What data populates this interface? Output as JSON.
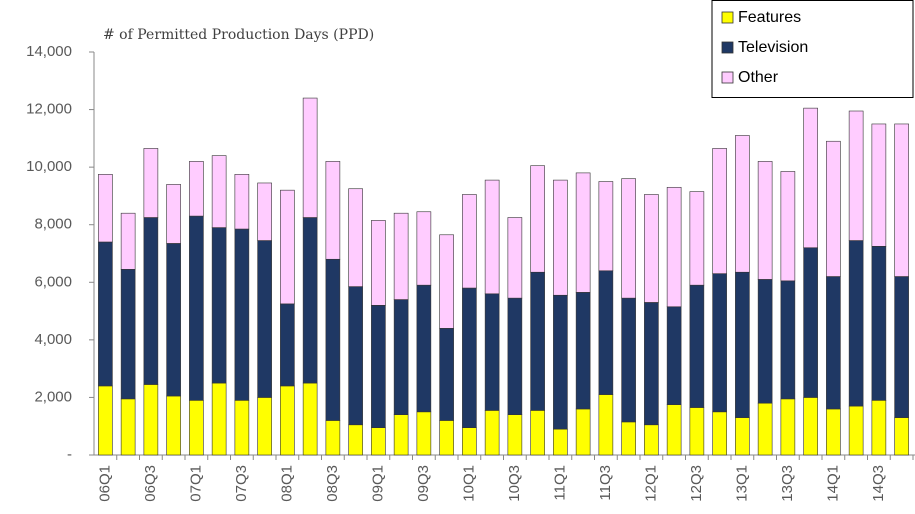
{
  "chart_data": {
    "type": "stacked_bar",
    "title": "# of Permitted Production Days (PPD)",
    "categories": [
      "06Q1",
      null,
      "06Q3",
      null,
      "07Q1",
      null,
      "07Q3",
      null,
      "08Q1",
      null,
      "08Q3",
      null,
      "09Q1",
      null,
      "09Q3",
      null,
      "10Q1",
      null,
      "10Q3",
      null,
      "11Q1",
      null,
      "11Q3",
      null,
      "12Q1",
      null,
      "12Q3",
      null,
      "13Q1",
      null,
      "13Q3",
      null,
      "14Q1",
      null,
      "14Q3",
      null
    ],
    "series": [
      {
        "name": "Features",
        "color": "#ffff00",
        "values": [
          2400,
          1950,
          2450,
          2050,
          1900,
          2500,
          1900,
          2000,
          2400,
          2500,
          1200,
          1050,
          950,
          1400,
          1500,
          1200,
          950,
          1550,
          1400,
          1550,
          900,
          1600,
          2100,
          1150,
          1050,
          1750,
          1650,
          1500,
          1300,
          1800,
          1950,
          2000,
          1600,
          1700,
          1900,
          1300
        ]
      },
      {
        "name": "Television",
        "color": "#1f3864",
        "values": [
          5000,
          4500,
          5800,
          5300,
          6400,
          5400,
          5950,
          5450,
          2850,
          5750,
          5600,
          4800,
          4250,
          4000,
          4400,
          3200,
          4850,
          4050,
          4050,
          4800,
          4650,
          4050,
          4300,
          4300,
          4250,
          3400,
          4250,
          4800,
          5050,
          4300,
          4100,
          5200,
          4600,
          5750,
          5350,
          4900
        ]
      },
      {
        "name": "Other",
        "color": "#ffccff",
        "values": [
          2350,
          1950,
          2400,
          2050,
          1900,
          2500,
          1900,
          2000,
          3950,
          4150,
          3400,
          3400,
          2950,
          3000,
          2550,
          3250,
          3250,
          3950,
          2800,
          3700,
          4000,
          4150,
          3100,
          4150,
          3750,
          4150,
          3250,
          4350,
          4750,
          4100,
          3800,
          4850,
          4700,
          4500,
          4250,
          5300
        ]
      }
    ],
    "ylim": [
      0,
      14000
    ],
    "yticks": [
      {
        "value": 0,
        "label": "-"
      },
      {
        "value": 2000,
        "label": "2,000"
      },
      {
        "value": 4000,
        "label": "4,000"
      },
      {
        "value": 6000,
        "label": "6,000"
      },
      {
        "value": 8000,
        "label": "8,000"
      },
      {
        "value": 10000,
        "label": "10,000"
      },
      {
        "value": 12000,
        "label": "12,000"
      },
      {
        "value": 14000,
        "label": "14,000"
      }
    ],
    "legend": "top-right"
  }
}
